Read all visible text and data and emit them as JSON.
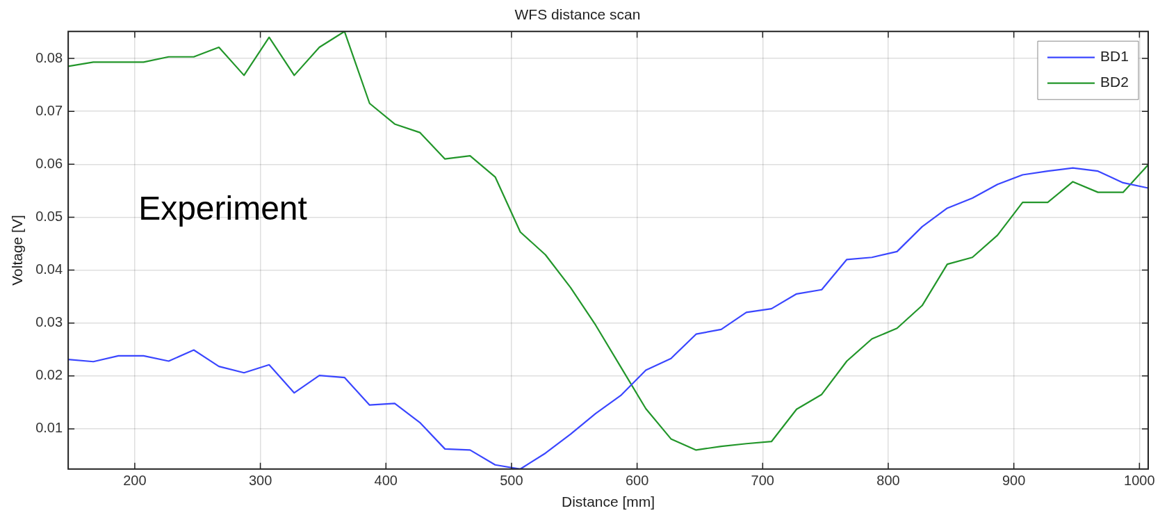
{
  "chart_data": {
    "type": "line",
    "title": "WFS distance scan",
    "xlabel": "Distance [mm]",
    "ylabel": "Voltage [V]",
    "x": [
      147,
      167,
      187,
      207,
      227,
      247,
      267,
      287,
      307,
      327,
      347,
      367,
      387,
      407,
      427,
      447,
      467,
      487,
      507,
      527,
      547,
      567,
      587,
      607,
      627,
      647,
      667,
      687,
      707,
      727,
      747,
      767,
      787,
      807,
      827,
      847,
      867,
      887,
      907,
      927,
      947,
      967,
      987,
      1007
    ],
    "series": [
      {
        "name": "BD1",
        "color": "#3a46ff",
        "values": [
          0.0231,
          0.0227,
          0.0238,
          0.0238,
          0.0228,
          0.0249,
          0.0218,
          0.0206,
          0.0221,
          0.0168,
          0.0201,
          0.0197,
          0.0145,
          0.0148,
          0.0112,
          0.0062,
          0.006,
          0.0032,
          0.0024,
          0.0054,
          0.009,
          0.0129,
          0.0163,
          0.0211,
          0.0233,
          0.0279,
          0.0288,
          0.032,
          0.0327,
          0.0355,
          0.0363,
          0.042,
          0.0424,
          0.0435,
          0.0482,
          0.0517,
          0.0536,
          0.0562,
          0.058,
          0.0587,
          0.0593,
          0.0587,
          0.0565,
          0.0555
        ]
      },
      {
        "name": "BD2",
        "color": "#22962a",
        "values": [
          0.0785,
          0.0793,
          0.0793,
          0.0793,
          0.0803,
          0.0803,
          0.0821,
          0.0768,
          0.084,
          0.0768,
          0.0821,
          0.0851,
          0.0715,
          0.0676,
          0.066,
          0.061,
          0.0616,
          0.0576,
          0.0472,
          0.0429,
          0.0367,
          0.0296,
          0.0217,
          0.0138,
          0.0081,
          0.006,
          0.0067,
          0.0072,
          0.0076,
          0.0137,
          0.0165,
          0.0228,
          0.027,
          0.029,
          0.0333,
          0.0411,
          0.0424,
          0.0466,
          0.0528,
          0.0528,
          0.0567,
          0.0547,
          0.0547,
          0.0599
        ]
      }
    ],
    "xlim": [
      147,
      1007
    ],
    "ylim": [
      0.0024,
      0.0851
    ],
    "xticks": [
      200,
      300,
      400,
      500,
      600,
      700,
      800,
      900,
      1000
    ],
    "yticks": [
      0.01,
      0.02,
      0.03,
      0.04,
      0.05,
      0.06,
      0.07,
      0.08
    ],
    "grid": true,
    "legend": "top right",
    "marker": "none",
    "line_style": "solid",
    "annotations": [
      "Experiment"
    ]
  }
}
